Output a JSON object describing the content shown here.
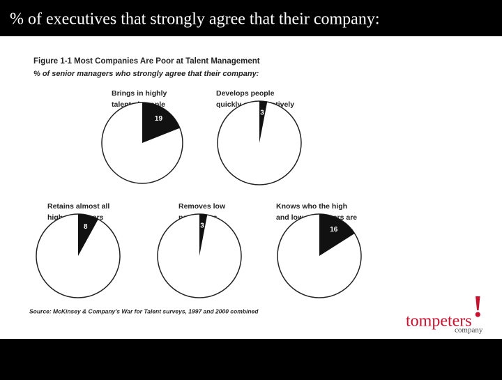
{
  "header": {
    "title": "% of executives that strongly agree that their company:"
  },
  "figure": {
    "title": "Figure 1-1 Most Companies Are Poor at Talent Management",
    "subtitle": "% of senior managers who strongly agree that their company:",
    "source": "Source: McKinsey & Company's War for Talent surveys, 1997 and 2000 combined"
  },
  "chart_data": [
    {
      "type": "pie",
      "title": [
        "Brings in highly",
        "talented people"
      ],
      "values": [
        19
      ],
      "color": "#111111"
    },
    {
      "type": "pie",
      "title": [
        "Develops people",
        "quickly and effectively"
      ],
      "values": [
        3
      ],
      "color": "#111111"
    },
    {
      "type": "pie",
      "title": [
        "Retains almost all",
        "high performers"
      ],
      "values": [
        8
      ],
      "color": "#111111"
    },
    {
      "type": "pie",
      "title": [
        "Removes low",
        "performers"
      ],
      "values": [
        3
      ],
      "color": "#111111"
    },
    {
      "type": "pie",
      "title": [
        "Knows who the high",
        "and low performers are"
      ],
      "values": [
        16
      ],
      "color": "#111111"
    }
  ],
  "logo": {
    "name": "tompeters",
    "mark": "!",
    "sub": "company"
  }
}
